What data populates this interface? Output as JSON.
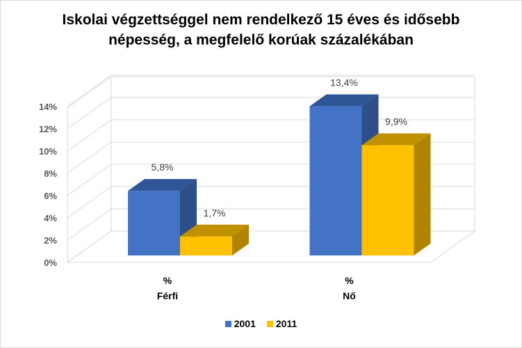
{
  "chart_data": {
    "type": "bar",
    "title_lines": [
      "Iskolai végzettséggel nem rendelkező 15 éves és idősebb",
      "népesség, a megfelelő korúak százalékában"
    ],
    "categories": [
      {
        "unit": "%",
        "name": "Férfi"
      },
      {
        "unit": "%",
        "name": "Nő"
      }
    ],
    "series": [
      {
        "name": "2001",
        "values": [
          5.8,
          13.4
        ],
        "labels": [
          "5,8%",
          "13,4%"
        ],
        "color": "#4472c4",
        "top_color": "#2f5597",
        "side_color": "#2e4e87"
      },
      {
        "name": "2011",
        "values": [
          1.7,
          9.9
        ],
        "labels": [
          "1,7%",
          "9,9%"
        ],
        "color": "#ffc000",
        "top_color": "#bf9000",
        "side_color": "#b08400"
      }
    ],
    "y_ticks": [
      "0%",
      "2%",
      "4%",
      "6%",
      "8%",
      "10%",
      "12%",
      "14%"
    ],
    "ylim": [
      0,
      14
    ],
    "three_d": true,
    "grid": true,
    "legend_position": "bottom"
  }
}
